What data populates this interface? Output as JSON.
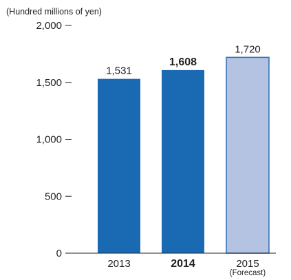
{
  "chart_data": {
    "type": "bar",
    "unit_label": "(Hundred millions of yen)",
    "categories": [
      "2013",
      "2014",
      "2015"
    ],
    "category_sublabels": [
      "",
      "",
      "(Forecast)"
    ],
    "values": [
      1531,
      1608,
      1720
    ],
    "value_labels": [
      "1,531",
      "1,608",
      "1,720"
    ],
    "highlighted_category": "2014",
    "forecast": [
      false,
      false,
      true
    ],
    "bar_colors": [
      "#1a6ab3",
      "#1a6ab3",
      "#b5c3e3"
    ],
    "forecast_border_color": "#2f6db5",
    "ylim": [
      0,
      2000
    ],
    "yticks": [
      0,
      500,
      1000,
      1500,
      2000
    ],
    "ytick_labels": [
      "0",
      "500",
      "1,000",
      "1,500",
      "2,000"
    ],
    "grid": false,
    "title": "",
    "xlabel": "",
    "ylabel": ""
  }
}
